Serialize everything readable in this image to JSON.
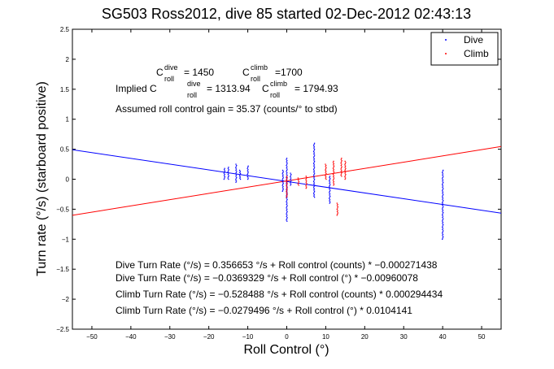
{
  "chart_data": {
    "type": "scatter",
    "title": "SG503 Ross2012, dive 85 started 02-Dec-2012 02:43:13",
    "xlabel": "Roll Control (°)",
    "ylabel": "Turn rate (°/s) (starboard positive)",
    "xlim": [
      -55,
      55
    ],
    "ylim": [
      -2.5,
      2.5
    ],
    "x_ticks": [
      -50,
      -40,
      -30,
      -20,
      -10,
      0,
      10,
      20,
      30,
      40,
      50
    ],
    "y_ticks": [
      -2.5,
      -2,
      -1.5,
      -1,
      -0.5,
      0,
      0.5,
      1,
      1.5,
      2,
      2.5
    ],
    "x_tick_labels": [
      "−50",
      "−40",
      "−30",
      "−20",
      "−10",
      "0",
      "10",
      "20",
      "30",
      "40",
      "50"
    ],
    "y_tick_labels": [
      "−2.5",
      "−2",
      "−1.5",
      "−1",
      "−0.5",
      "0",
      "0.5",
      "1",
      "1.5",
      "2",
      "2.5"
    ],
    "legend_position": "top-right",
    "grid": false,
    "series": [
      {
        "name": "Dive",
        "color": "#0000ff",
        "clusters": [
          {
            "x": -16,
            "y_min": 0.0,
            "y_max": 0.18
          },
          {
            "x": -15,
            "y_min": 0.0,
            "y_max": 0.2
          },
          {
            "x": -13,
            "y_min": -0.05,
            "y_max": 0.25
          },
          {
            "x": -12,
            "y_min": 0.0,
            "y_max": 0.15
          },
          {
            "x": -10,
            "y_min": 0.0,
            "y_max": 0.22
          },
          {
            "x": -1,
            "y_min": -0.2,
            "y_max": 0.15
          },
          {
            "x": 0,
            "y_min": -0.7,
            "y_max": 0.35
          },
          {
            "x": 1,
            "y_min": -0.1,
            "y_max": 0.1
          },
          {
            "x": 7,
            "y_min": -0.3,
            "y_max": 0.6
          },
          {
            "x": 11,
            "y_min": -0.4,
            "y_max": 0.05
          },
          {
            "x": 40,
            "y_min": -1.0,
            "y_max": 0.15
          }
        ]
      },
      {
        "name": "Climb",
        "color": "#ff0000",
        "clusters": [
          {
            "x": 0,
            "y_min": -0.3,
            "y_max": 0.05
          },
          {
            "x": 3,
            "y_min": -0.1,
            "y_max": 0.02
          },
          {
            "x": 5,
            "y_min": -0.15,
            "y_max": 0.05
          },
          {
            "x": 10,
            "y_min": 0.0,
            "y_max": 0.25
          },
          {
            "x": 12,
            "y_min": -0.1,
            "y_max": 0.3
          },
          {
            "x": 13,
            "y_min": -0.6,
            "y_max": -0.4
          },
          {
            "x": 14,
            "y_min": 0.05,
            "y_max": 0.35
          },
          {
            "x": 15,
            "y_min": 0.0,
            "y_max": 0.3
          }
        ]
      }
    ],
    "fit_lines": [
      {
        "name": "Dive fit",
        "color": "#0000ff",
        "slope": -0.00960078,
        "intercept": -0.0369329
      },
      {
        "name": "Climb fit",
        "color": "#ff0000",
        "slope": 0.0104141,
        "intercept": -0.0279496
      }
    ],
    "annotations": {
      "c_roll_dive": "C_roll^dive = 1450",
      "c_roll_climb": "C_roll^climb = 1700",
      "implied_dive": "Implied C_roll^dive = 1313.94",
      "implied_climb": "C_roll^climb = 1794.93",
      "gain": "Assumed roll control gain = 35.37 (counts/° to stbd)",
      "eq_dive_counts": "Dive Turn Rate (°/s) = 0.356653 °/s + Roll control (counts) * −0.000271438",
      "eq_dive_deg": "Dive Turn Rate (°/s) = −0.0369329 °/s + Roll control (°) * −0.00960078",
      "eq_climb_counts": "Climb Turn Rate (°/s) = −0.528488 °/s + Roll control (counts) * 0.000294434",
      "eq_climb_deg": "Climb Turn Rate (°/s) = −0.0279496 °/s + Roll control (°) * 0.0104141"
    }
  },
  "text": {
    "c_label": "C",
    "sub_roll": "roll",
    "sup_dive": "dive",
    "sup_climb": "climb",
    "val_dive": "= 1450",
    "val_climb": "=1700",
    "implied_prefix": "Implied C",
    "val_implied_dive": "= 1313.94",
    "val_implied_climb": "= 1794.93",
    "gain": "Assumed roll control gain = 35.37 (counts/° to stbd)"
  }
}
